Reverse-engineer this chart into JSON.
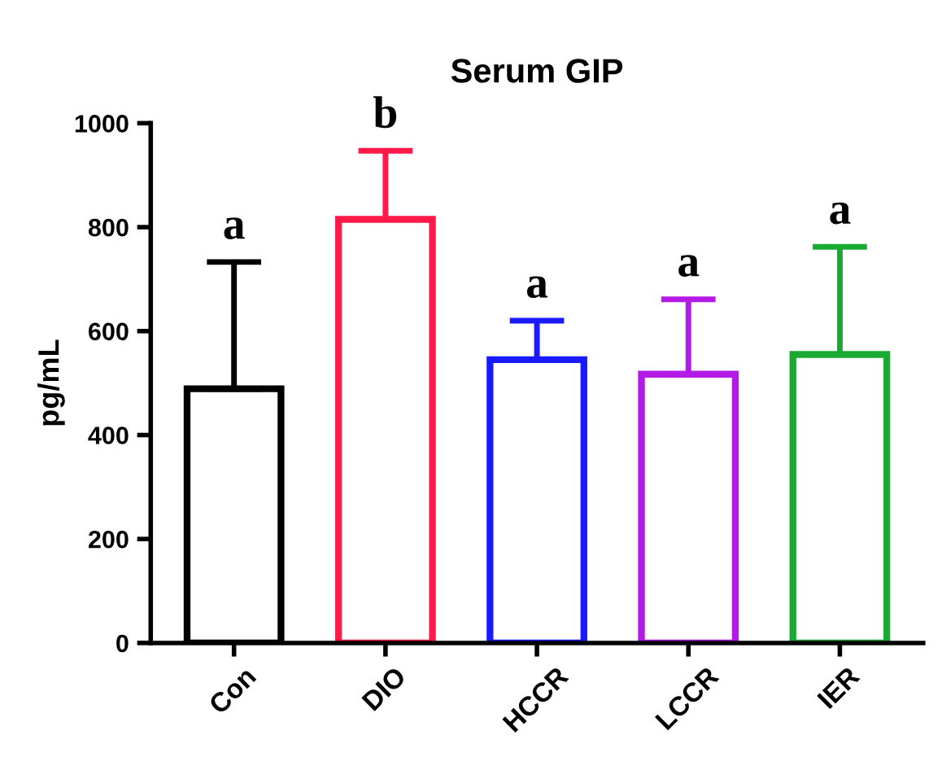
{
  "chart_data": {
    "type": "bar",
    "title": "Serum GIP",
    "ylabel": "pg/mL",
    "categories": [
      "Con",
      "DIO",
      "HCCR",
      "LCCR",
      "IER"
    ],
    "values": [
      489,
      815,
      545,
      517,
      555
    ],
    "colors": [
      "#000000",
      "#ff1a4a",
      "#1a1aff",
      "#b31ae6",
      "#1aaa33"
    ],
    "errors": [
      [
        489,
        733
      ],
      [
        815,
        947
      ],
      [
        545,
        620
      ],
      [
        517,
        661
      ],
      [
        555,
        762
      ]
    ],
    "ylim": [
      0,
      1000
    ],
    "yticks": [
      0,
      200,
      400,
      600,
      800,
      1000
    ],
    "grid": false,
    "legend": false,
    "annotations": [
      "a",
      "b",
      "a",
      "a",
      "a"
    ]
  }
}
